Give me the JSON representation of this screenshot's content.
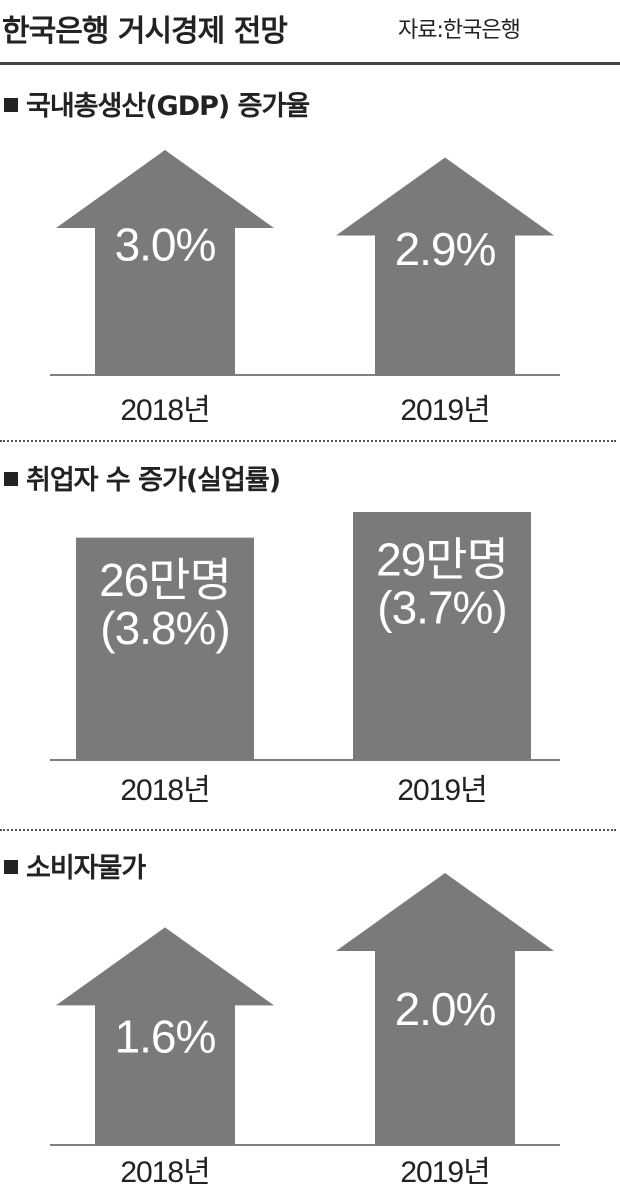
{
  "header": {
    "title": "한국은행 거시경제 전망",
    "source": "자료:한국은행"
  },
  "chart_data": [
    {
      "type": "bar",
      "title": "국내총생산(GDP) 증가율",
      "categories": [
        "2018년",
        "2019년"
      ],
      "values": [
        3.0,
        2.9
      ],
      "labels": [
        [
          "3.0%"
        ],
        [
          "2.9%"
        ]
      ],
      "mark": "arrow",
      "color": "#7a7a7a"
    },
    {
      "type": "bar",
      "title": "취업자 수 증가(실업률)",
      "categories": [
        "2018년",
        "2019년"
      ],
      "values": [
        26,
        29
      ],
      "secondary_values": [
        3.8,
        3.7
      ],
      "labels": [
        [
          "26만명",
          "(3.8%)"
        ],
        [
          "29만명",
          "(3.7%)"
        ]
      ],
      "mark": "rect",
      "color": "#7a7a7a"
    },
    {
      "type": "bar",
      "title": "소비자물가",
      "categories": [
        "2018년",
        "2019년"
      ],
      "values": [
        1.6,
        2.0
      ],
      "labels": [
        [
          "1.6%"
        ],
        [
          "2.0%"
        ]
      ],
      "mark": "arrow",
      "color": "#7a7a7a"
    }
  ]
}
